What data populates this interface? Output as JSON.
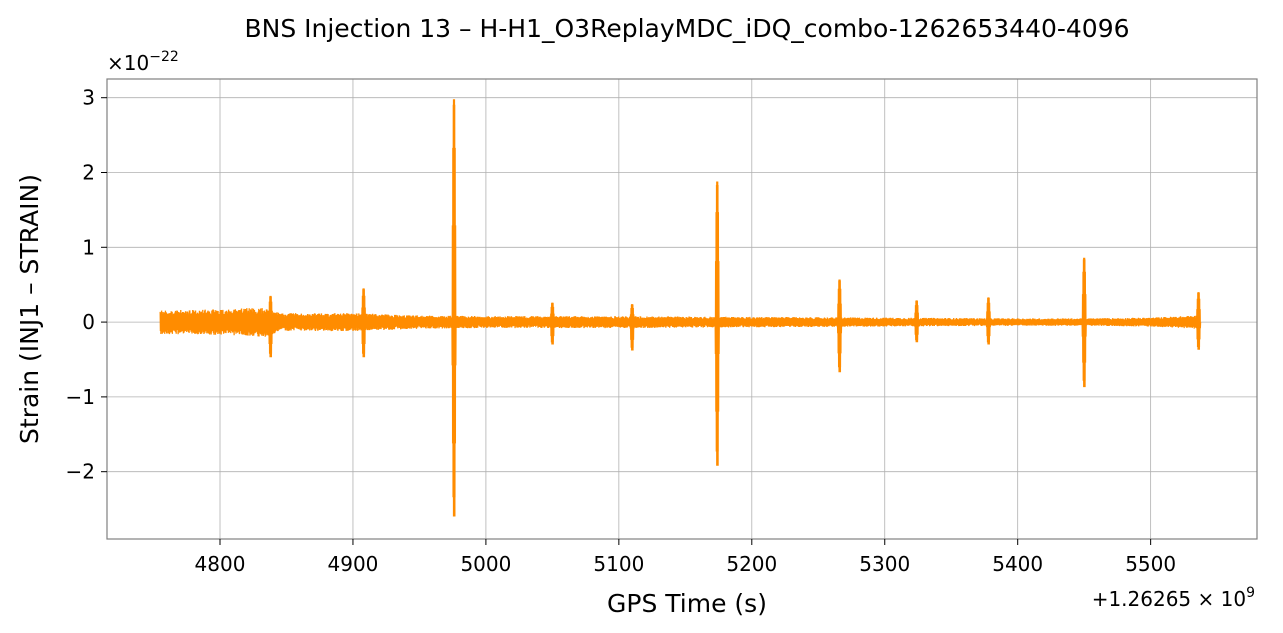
{
  "chart_data": {
    "type": "line",
    "title": "BNS Injection 13 – H-H1_O3ReplayMDC_iDQ_combo-1262653440-4096",
    "xlabel": "GPS Time (s)",
    "ylabel": "Strain (INJ1 – STRAIN)",
    "x_offset_label": "+1.26265 × 10",
    "x_offset_exp": "9",
    "y_multiplier_label": "×10",
    "y_multiplier_exp": "−22",
    "xlim": [
      4715,
      5580
    ],
    "ylim": [
      -2.9,
      3.25
    ],
    "x_ticks": [
      {
        "value": 4800,
        "label": "4800"
      },
      {
        "value": 4900,
        "label": "4900"
      },
      {
        "value": 5000,
        "label": "5000"
      },
      {
        "value": 5100,
        "label": "5100"
      },
      {
        "value": 5200,
        "label": "5200"
      },
      {
        "value": 5300,
        "label": "5300"
      },
      {
        "value": 5400,
        "label": "5400"
      },
      {
        "value": 5500,
        "label": "5500"
      }
    ],
    "y_ticks": [
      {
        "value": -2,
        "label": "−2"
      },
      {
        "value": -1,
        "label": "−1"
      },
      {
        "value": 0,
        "label": "0"
      },
      {
        "value": 1,
        "label": "1"
      },
      {
        "value": 2,
        "label": "2"
      },
      {
        "value": 3,
        "label": "3"
      }
    ],
    "grid": true,
    "line_color": "#ff8c00",
    "series": [
      {
        "x_range": [
          4755,
          5537
        ],
        "noise_envelope": [
          [
            4755,
            0.16
          ],
          [
            4800,
            0.17
          ],
          [
            4835,
            0.2
          ],
          [
            4845,
            0.12
          ],
          [
            4900,
            0.12
          ],
          [
            4950,
            0.09
          ],
          [
            5000,
            0.08
          ],
          [
            5050,
            0.08
          ],
          [
            5100,
            0.08
          ],
          [
            5200,
            0.07
          ],
          [
            5300,
            0.06
          ],
          [
            5400,
            0.05
          ],
          [
            5450,
            0.05
          ],
          [
            5500,
            0.06
          ],
          [
            5537,
            0.09
          ]
        ],
        "spikes": [
          {
            "x": 4838,
            "max": 0.35,
            "min": -0.47
          },
          {
            "x": 4908,
            "max": 0.45,
            "min": -0.47
          },
          {
            "x": 4976,
            "max": 2.98,
            "min": -2.6
          },
          {
            "x": 5050,
            "max": 0.26,
            "min": -0.3
          },
          {
            "x": 5110,
            "max": 0.24,
            "min": -0.38
          },
          {
            "x": 5174,
            "max": 1.88,
            "min": -1.92
          },
          {
            "x": 5266,
            "max": 0.57,
            "min": -0.67
          },
          {
            "x": 5324,
            "max": 0.29,
            "min": -0.27
          },
          {
            "x": 5378,
            "max": 0.33,
            "min": -0.3
          },
          {
            "x": 5450,
            "max": 0.86,
            "min": -0.87
          },
          {
            "x": 5536,
            "max": 0.4,
            "min": -0.37
          }
        ]
      }
    ]
  }
}
